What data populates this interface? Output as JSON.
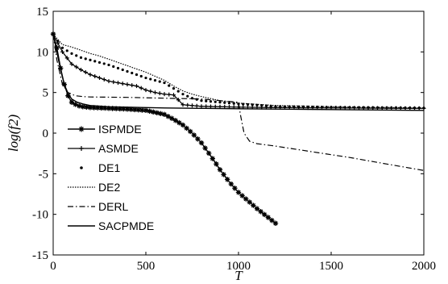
{
  "chart_data": {
    "type": "line",
    "title": "",
    "xlabel": "T",
    "ylabel": "log(f2)",
    "xlim": [
      0,
      2000
    ],
    "ylim": [
      -15,
      15
    ],
    "xticks": [
      0,
      500,
      1000,
      1500,
      2000
    ],
    "yticks": [
      -15,
      -10,
      -5,
      0,
      5,
      10,
      15
    ],
    "grid": false,
    "legend_position": "lower-left",
    "series": [
      {
        "name": "ISPMDE",
        "style": "solid-with-star-markers",
        "color": "#000000",
        "x": [
          0,
          20,
          40,
          60,
          80,
          100,
          130,
          160,
          200,
          300,
          400,
          500,
          600,
          650,
          700,
          750,
          800,
          850,
          880,
          900,
          950,
          1000,
          1050,
          1100,
          1150,
          1200
        ],
        "y": [
          12.2,
          10.5,
          8.0,
          6.0,
          4.6,
          3.8,
          3.4,
          3.25,
          3.15,
          3.05,
          2.95,
          2.8,
          2.3,
          1.7,
          1.0,
          0.0,
          -1.2,
          -2.8,
          -3.8,
          -4.5,
          -6.0,
          -7.3,
          -8.3,
          -9.3,
          -10.2,
          -11.1
        ]
      },
      {
        "name": "ASMDE",
        "style": "solid-with-plus-markers",
        "color": "#000000",
        "x": [
          0,
          50,
          100,
          150,
          200,
          250,
          300,
          350,
          400,
          450,
          500,
          550,
          600,
          650,
          700,
          800,
          1000,
          1200,
          1500,
          2000
        ],
        "y": [
          12.2,
          10.0,
          8.5,
          7.8,
          7.2,
          6.8,
          6.4,
          6.2,
          6.0,
          5.8,
          5.3,
          5.0,
          4.8,
          4.7,
          3.5,
          3.3,
          3.2,
          3.15,
          3.1,
          3.05
        ]
      },
      {
        "name": "DE1",
        "style": "dots",
        "color": "#000000",
        "x": [
          0,
          50,
          100,
          150,
          200,
          250,
          300,
          350,
          400,
          450,
          500,
          550,
          600,
          650,
          700,
          750,
          800,
          900,
          1000,
          1200,
          1500,
          2000
        ],
        "y": [
          12.2,
          10.5,
          9.8,
          9.3,
          9.0,
          8.7,
          8.4,
          8.0,
          7.6,
          7.2,
          6.8,
          6.5,
          6.2,
          5.5,
          4.8,
          4.3,
          4.0,
          3.8,
          3.6,
          3.3,
          3.2,
          3.1
        ]
      },
      {
        "name": "DE2",
        "style": "dotted",
        "color": "#000000",
        "x": [
          0,
          50,
          100,
          150,
          200,
          250,
          300,
          350,
          400,
          450,
          500,
          550,
          600,
          650,
          700,
          750,
          800,
          900,
          1000,
          1200,
          1500,
          2000
        ],
        "y": [
          12.2,
          10.9,
          10.6,
          10.2,
          9.8,
          9.5,
          9.1,
          8.7,
          8.3,
          7.9,
          7.5,
          7.0,
          6.5,
          5.8,
          5.2,
          4.8,
          4.5,
          4.0,
          3.7,
          3.4,
          3.25,
          3.1
        ]
      },
      {
        "name": "DERL",
        "style": "dash-dot",
        "color": "#000000",
        "x": [
          0,
          20,
          50,
          80,
          120,
          160,
          200,
          400,
          600,
          800,
          1000,
          1010,
          1030,
          1060,
          1100,
          1200,
          1400,
          1600,
          1800,
          2000
        ],
        "y": [
          12.2,
          9.0,
          6.0,
          5.0,
          4.6,
          4.5,
          4.45,
          4.4,
          4.3,
          4.2,
          3.8,
          2.3,
          0.0,
          -1.0,
          -1.3,
          -1.6,
          -2.3,
          -3.0,
          -3.8,
          -4.6
        ]
      },
      {
        "name": "SACPMDE",
        "style": "solid",
        "color": "#000000",
        "x": [
          0,
          20,
          40,
          60,
          80,
          100,
          130,
          160,
          200,
          300,
          400,
          600,
          800,
          1000,
          1500,
          2000
        ],
        "y": [
          12.2,
          10.0,
          7.8,
          6.0,
          4.9,
          4.2,
          3.8,
          3.6,
          3.4,
          3.25,
          3.2,
          3.1,
          3.05,
          3.0,
          2.9,
          2.8
        ]
      }
    ]
  }
}
